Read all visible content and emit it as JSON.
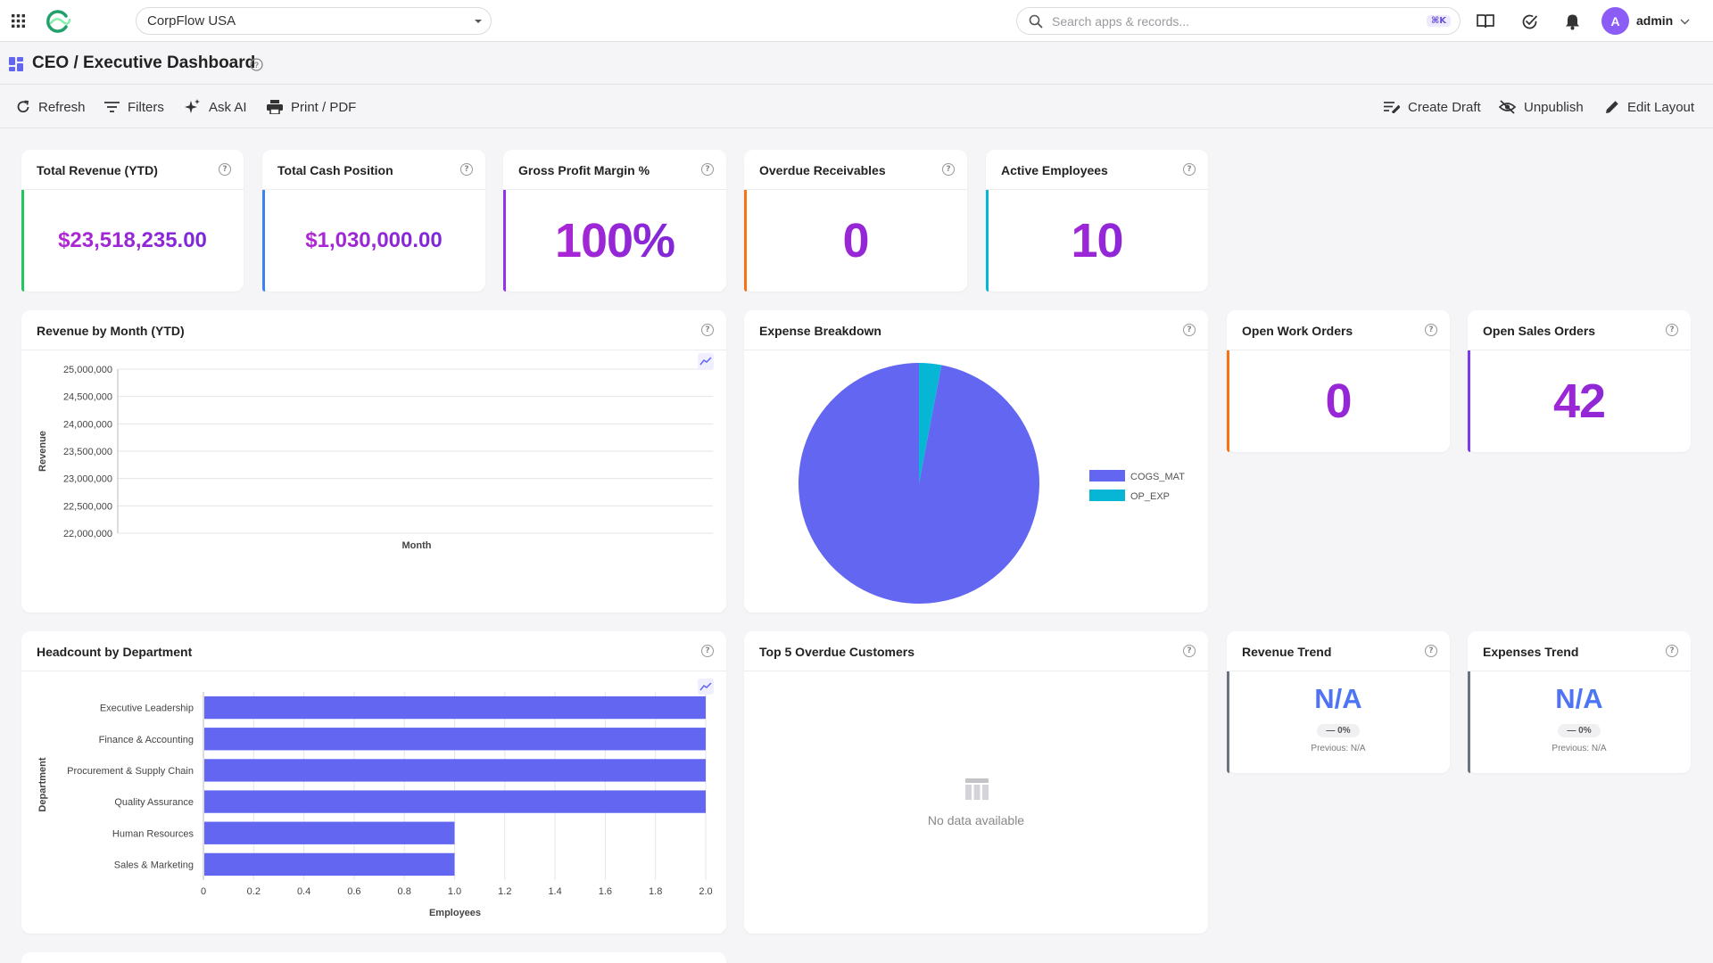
{
  "topbar": {
    "company": "CorpFlow USA",
    "search_placeholder": "Search apps & records...",
    "search_shortcut": "⌘K",
    "avatar_initial": "A",
    "username": "admin"
  },
  "page": {
    "title": "CEO / Executive Dashboard"
  },
  "toolbar": {
    "refresh": "Refresh",
    "filters": "Filters",
    "ask_ai": "Ask AI",
    "print": "Print / PDF",
    "create_draft": "Create Draft",
    "unpublish": "Unpublish",
    "edit_layout": "Edit Layout"
  },
  "kpis": {
    "total_revenue": {
      "title": "Total Revenue (YTD)",
      "value": "$23,518,235.00",
      "accent": "#22c55e"
    },
    "total_cash": {
      "title": "Total Cash Position",
      "value": "$1,030,000.00",
      "accent": "#3b82f6"
    },
    "gross_margin": {
      "title": "Gross Profit Margin %",
      "value": "100%",
      "accent": "#9333ea"
    },
    "overdue_receivables": {
      "title": "Overdue Receivables",
      "value": "0",
      "accent": "#f97316"
    },
    "active_employees": {
      "title": "Active Employees",
      "value": "10",
      "accent": "#06b6d4"
    },
    "open_work_orders": {
      "title": "Open Work Orders",
      "value": "0",
      "accent": "#f97316"
    },
    "open_sales_orders": {
      "title": "Open Sales Orders",
      "value": "42",
      "accent": "#7c3aed"
    }
  },
  "revenue_trend": {
    "title": "Revenue Trend",
    "value": "N/A",
    "change": "— 0%",
    "previous": "Previous: N/A"
  },
  "expenses_trend": {
    "title": "Expenses Trend",
    "value": "N/A",
    "change": "— 0%",
    "previous": "Previous: N/A"
  },
  "top_overdue": {
    "title": "Top 5 Overdue Customers",
    "empty_text": "No data available"
  },
  "chart_data": [
    {
      "id": "revenue_by_month",
      "type": "line",
      "title": "Revenue by Month (YTD)",
      "xlabel": "Month",
      "ylabel": "Revenue",
      "ylim": [
        22000000,
        25000000
      ],
      "yticks": [
        "22,000,000",
        "22,500,000",
        "23,000,000",
        "23,500,000",
        "24,000,000",
        "24,500,000",
        "25,000,000"
      ],
      "series": [],
      "grid": true
    },
    {
      "id": "expense_breakdown",
      "type": "pie",
      "title": "Expense Breakdown",
      "labels": [
        "COGS_MAT",
        "OP_EXP"
      ],
      "values": [
        97,
        3
      ],
      "colors": [
        "#6366f1",
        "#06b6d4"
      ],
      "legend": "right"
    },
    {
      "id": "headcount_by_department",
      "type": "bar",
      "orientation": "horizontal",
      "title": "Headcount by Department",
      "xlabel": "Employees",
      "ylabel": "Department",
      "categories": [
        "Executive Leadership",
        "Finance & Accounting",
        "Procurement & Supply Chain",
        "Quality Assurance",
        "Human Resources",
        "Sales & Marketing"
      ],
      "values": [
        2,
        2,
        2,
        2,
        1,
        1
      ],
      "xlim": [
        0,
        2.0
      ],
      "xticks": [
        "0",
        "0.2",
        "0.4",
        "0.6",
        "0.8",
        "1.0",
        "1.2",
        "1.4",
        "1.6",
        "1.8",
        "2.0"
      ],
      "color": "#6366f1",
      "grid": true
    }
  ]
}
